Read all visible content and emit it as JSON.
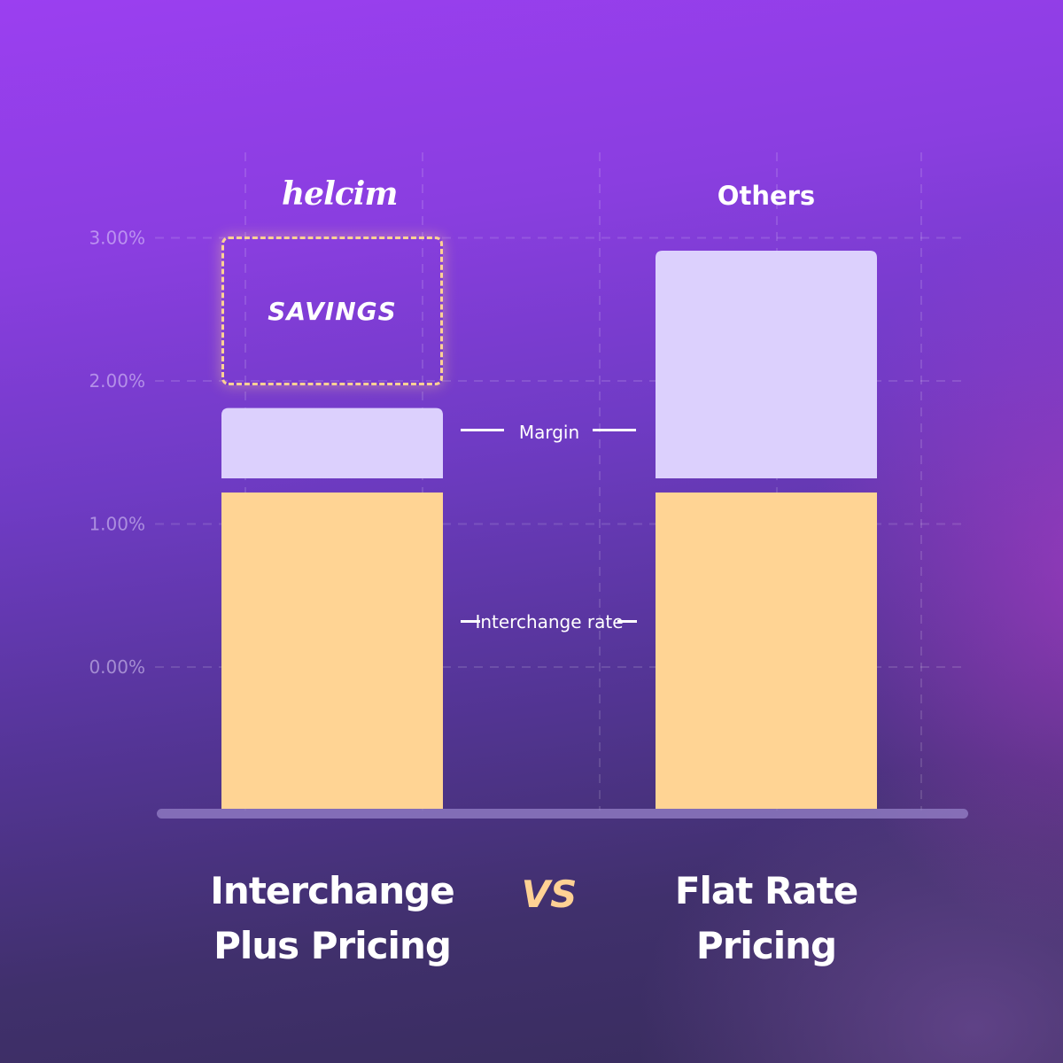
{
  "chart_data": {
    "type": "bar",
    "stacked": true,
    "categories": [
      "Interchange Plus Pricing",
      "Flat Rate Pricing"
    ],
    "category_headers": [
      "helcim",
      "Others"
    ],
    "category_lines": [
      [
        "Interchange",
        "Plus Pricing"
      ],
      [
        "Flat Rate",
        "Pricing"
      ]
    ],
    "series": [
      {
        "name": "Interchange rate",
        "values": [
          1.22,
          1.22
        ],
        "color": "#ffd494"
      },
      {
        "name": "Margin",
        "values": [
          0.59,
          1.69
        ],
        "color": "#dcd0fd"
      }
    ],
    "savings": {
      "label": "SAVINGS",
      "from": 2.0,
      "to": 3.0,
      "color": "#ffd194"
    },
    "annotations": {
      "margin": "Margin",
      "interchange": "Interchange rate"
    },
    "y_ticks": [
      {
        "value": 3.0,
        "label": "3.00%"
      },
      {
        "value": 2.0,
        "label": "2.00%"
      },
      {
        "value": 1.0,
        "label": "1.00%"
      },
      {
        "value": 0.0,
        "label": "0.00%"
      }
    ],
    "ylim": [
      -1.0,
      3.0
    ],
    "grid": true,
    "vs_label": "VS"
  },
  "colors": {
    "accent": "#ffd194",
    "bar_lower": "#ffd494",
    "bar_upper": "#dcd0fd",
    "text": "#ffffff",
    "tick_text": "#c8b4f0"
  }
}
